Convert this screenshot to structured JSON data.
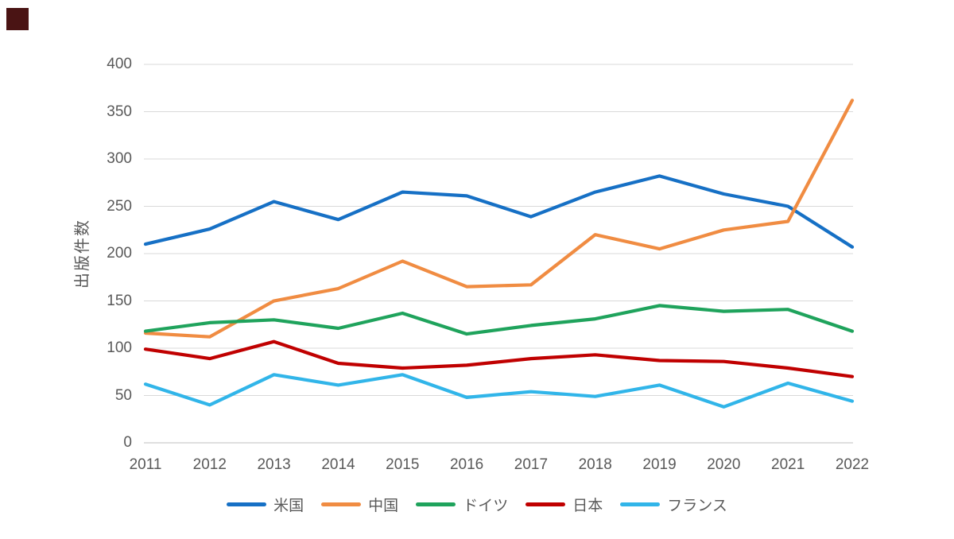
{
  "page": {
    "background": "#FFFFFF",
    "corner_marker_color": "#4A1414"
  },
  "colors": {
    "grid": "#D9D9D9",
    "axis_line": "#BFBFBF",
    "text": "#595959"
  },
  "chart_data": {
    "type": "line",
    "title": "",
    "xlabel": "",
    "ylabel": "出版件数",
    "ylim": [
      0,
      400
    ],
    "yticks": [
      0,
      50,
      100,
      150,
      200,
      250,
      300,
      350,
      400
    ],
    "grid": true,
    "legend_position": "bottom",
    "x": [
      "2011",
      "2012",
      "2013",
      "2014",
      "2015",
      "2016",
      "2017",
      "2018",
      "2019",
      "2020",
      "2021",
      "2022"
    ],
    "series": [
      {
        "name": "米国",
        "color": "#1670C5",
        "values": [
          210,
          226,
          255,
          236,
          265,
          261,
          239,
          265,
          282,
          263,
          250,
          207
        ]
      },
      {
        "name": "中国",
        "color": "#F08C42",
        "values": [
          116,
          112,
          150,
          163,
          192,
          165,
          167,
          220,
          205,
          225,
          234,
          362
        ]
      },
      {
        "name": "ドイツ",
        "color": "#1FA35C",
        "values": [
          118,
          127,
          130,
          121,
          137,
          115,
          124,
          131,
          145,
          139,
          141,
          118
        ]
      },
      {
        "name": "日本",
        "color": "#C00000",
        "values": [
          99,
          89,
          107,
          84,
          79,
          82,
          89,
          93,
          87,
          86,
          79,
          70
        ]
      },
      {
        "name": "フランス",
        "color": "#31B5E9",
        "values": [
          62,
          40,
          72,
          61,
          72,
          48,
          54,
          49,
          61,
          38,
          63,
          44
        ]
      }
    ]
  }
}
